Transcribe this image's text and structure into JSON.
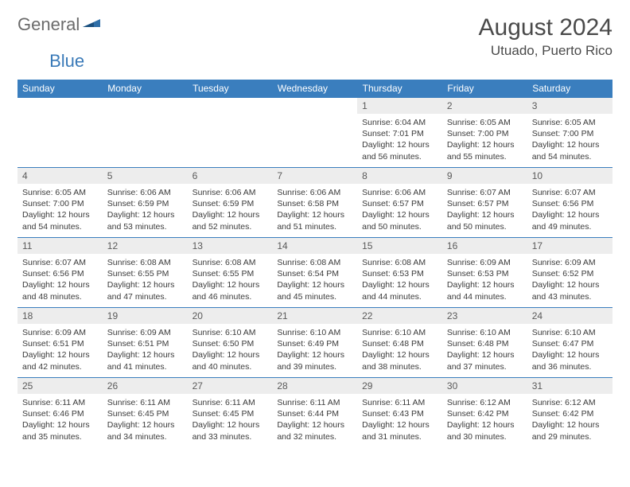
{
  "brand": {
    "part1": "General",
    "part2": "Blue"
  },
  "title": {
    "month": "August 2024",
    "location": "Utuado, Puerto Rico"
  },
  "colors": {
    "header_bg": "#3a7ebe",
    "header_text": "#ffffff",
    "daynum_bg": "#ededed",
    "text": "#3a3a3a",
    "border": "#3a7ebe"
  },
  "weekdays": [
    "Sunday",
    "Monday",
    "Tuesday",
    "Wednesday",
    "Thursday",
    "Friday",
    "Saturday"
  ],
  "rows": [
    [
      null,
      null,
      null,
      null,
      {
        "n": "1",
        "sr": "6:04 AM",
        "ss": "7:01 PM",
        "dl": "12 hours and 56 minutes."
      },
      {
        "n": "2",
        "sr": "6:05 AM",
        "ss": "7:00 PM",
        "dl": "12 hours and 55 minutes."
      },
      {
        "n": "3",
        "sr": "6:05 AM",
        "ss": "7:00 PM",
        "dl": "12 hours and 54 minutes."
      }
    ],
    [
      {
        "n": "4",
        "sr": "6:05 AM",
        "ss": "7:00 PM",
        "dl": "12 hours and 54 minutes."
      },
      {
        "n": "5",
        "sr": "6:06 AM",
        "ss": "6:59 PM",
        "dl": "12 hours and 53 minutes."
      },
      {
        "n": "6",
        "sr": "6:06 AM",
        "ss": "6:59 PM",
        "dl": "12 hours and 52 minutes."
      },
      {
        "n": "7",
        "sr": "6:06 AM",
        "ss": "6:58 PM",
        "dl": "12 hours and 51 minutes."
      },
      {
        "n": "8",
        "sr": "6:06 AM",
        "ss": "6:57 PM",
        "dl": "12 hours and 50 minutes."
      },
      {
        "n": "9",
        "sr": "6:07 AM",
        "ss": "6:57 PM",
        "dl": "12 hours and 50 minutes."
      },
      {
        "n": "10",
        "sr": "6:07 AM",
        "ss": "6:56 PM",
        "dl": "12 hours and 49 minutes."
      }
    ],
    [
      {
        "n": "11",
        "sr": "6:07 AM",
        "ss": "6:56 PM",
        "dl": "12 hours and 48 minutes."
      },
      {
        "n": "12",
        "sr": "6:08 AM",
        "ss": "6:55 PM",
        "dl": "12 hours and 47 minutes."
      },
      {
        "n": "13",
        "sr": "6:08 AM",
        "ss": "6:55 PM",
        "dl": "12 hours and 46 minutes."
      },
      {
        "n": "14",
        "sr": "6:08 AM",
        "ss": "6:54 PM",
        "dl": "12 hours and 45 minutes."
      },
      {
        "n": "15",
        "sr": "6:08 AM",
        "ss": "6:53 PM",
        "dl": "12 hours and 44 minutes."
      },
      {
        "n": "16",
        "sr": "6:09 AM",
        "ss": "6:53 PM",
        "dl": "12 hours and 44 minutes."
      },
      {
        "n": "17",
        "sr": "6:09 AM",
        "ss": "6:52 PM",
        "dl": "12 hours and 43 minutes."
      }
    ],
    [
      {
        "n": "18",
        "sr": "6:09 AM",
        "ss": "6:51 PM",
        "dl": "12 hours and 42 minutes."
      },
      {
        "n": "19",
        "sr": "6:09 AM",
        "ss": "6:51 PM",
        "dl": "12 hours and 41 minutes."
      },
      {
        "n": "20",
        "sr": "6:10 AM",
        "ss": "6:50 PM",
        "dl": "12 hours and 40 minutes."
      },
      {
        "n": "21",
        "sr": "6:10 AM",
        "ss": "6:49 PM",
        "dl": "12 hours and 39 minutes."
      },
      {
        "n": "22",
        "sr": "6:10 AM",
        "ss": "6:48 PM",
        "dl": "12 hours and 38 minutes."
      },
      {
        "n": "23",
        "sr": "6:10 AM",
        "ss": "6:48 PM",
        "dl": "12 hours and 37 minutes."
      },
      {
        "n": "24",
        "sr": "6:10 AM",
        "ss": "6:47 PM",
        "dl": "12 hours and 36 minutes."
      }
    ],
    [
      {
        "n": "25",
        "sr": "6:11 AM",
        "ss": "6:46 PM",
        "dl": "12 hours and 35 minutes."
      },
      {
        "n": "26",
        "sr": "6:11 AM",
        "ss": "6:45 PM",
        "dl": "12 hours and 34 minutes."
      },
      {
        "n": "27",
        "sr": "6:11 AM",
        "ss": "6:45 PM",
        "dl": "12 hours and 33 minutes."
      },
      {
        "n": "28",
        "sr": "6:11 AM",
        "ss": "6:44 PM",
        "dl": "12 hours and 32 minutes."
      },
      {
        "n": "29",
        "sr": "6:11 AM",
        "ss": "6:43 PM",
        "dl": "12 hours and 31 minutes."
      },
      {
        "n": "30",
        "sr": "6:12 AM",
        "ss": "6:42 PM",
        "dl": "12 hours and 30 minutes."
      },
      {
        "n": "31",
        "sr": "6:12 AM",
        "ss": "6:42 PM",
        "dl": "12 hours and 29 minutes."
      }
    ]
  ],
  "labels": {
    "sunrise": "Sunrise: ",
    "sunset": "Sunset: ",
    "daylight": "Daylight: "
  }
}
